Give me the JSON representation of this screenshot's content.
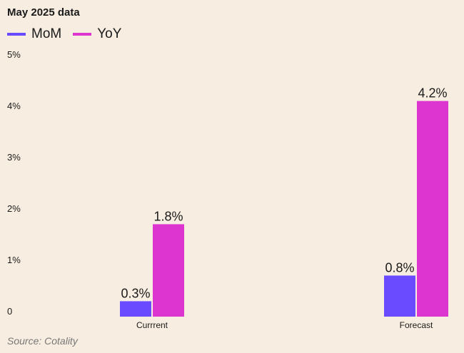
{
  "chart_data": {
    "type": "bar",
    "title": "May 2025 data",
    "categories": [
      "Currrent",
      "Forecast"
    ],
    "series": [
      {
        "name": "MoM",
        "color": "#6a4bff",
        "values": [
          0.3,
          0.8
        ],
        "labels": [
          "0.3%",
          "0.8%"
        ]
      },
      {
        "name": "YoY",
        "color": "#dd36d0",
        "values": [
          1.8,
          4.2
        ],
        "labels": [
          "1.8%",
          "4.2%"
        ]
      }
    ],
    "ylim": [
      0,
      5
    ],
    "yticks": [
      {
        "value": 0,
        "label": "0"
      },
      {
        "value": 1,
        "label": "1%"
      },
      {
        "value": 2,
        "label": "2%"
      },
      {
        "value": 3,
        "label": "3%"
      },
      {
        "value": 4,
        "label": "4%"
      },
      {
        "value": 5,
        "label": "5%"
      }
    ],
    "legend": "top-left",
    "grid": false
  },
  "source": "Source: Cotality"
}
